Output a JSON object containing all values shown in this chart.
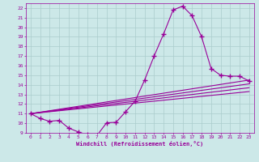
{
  "bg_color": "#cce8e8",
  "line_color": "#990099",
  "grid_color": "#aacccc",
  "xlabel": "Windchill (Refroidissement éolien,°C)",
  "xlabel_color": "#990099",
  "tick_color": "#990099",
  "ylim": [
    9,
    22.5
  ],
  "xlim": [
    -0.5,
    23.5
  ],
  "yticks": [
    9,
    10,
    11,
    12,
    13,
    14,
    15,
    16,
    17,
    18,
    19,
    20,
    21,
    22
  ],
  "xticks": [
    0,
    1,
    2,
    3,
    4,
    5,
    6,
    7,
    8,
    9,
    10,
    11,
    12,
    13,
    14,
    15,
    16,
    17,
    18,
    19,
    20,
    21,
    22,
    23
  ],
  "line1_x": [
    0,
    1,
    2,
    3,
    4,
    5,
    6,
    7,
    8,
    9,
    10,
    11,
    12,
    13,
    14,
    15,
    16,
    17,
    18,
    19,
    20,
    21,
    22,
    23
  ],
  "line1_y": [
    11.0,
    10.5,
    10.2,
    10.3,
    9.5,
    9.1,
    8.8,
    8.75,
    10.05,
    10.1,
    11.2,
    12.3,
    14.5,
    17.0,
    19.3,
    21.8,
    22.2,
    21.2,
    19.0,
    15.7,
    15.0,
    14.9,
    14.9,
    14.4
  ],
  "line2_x": [
    0,
    23
  ],
  "line2_y": [
    11.0,
    14.5
  ],
  "line3_x": [
    0,
    23
  ],
  "line3_y": [
    11.0,
    14.1
  ],
  "line4_x": [
    0,
    23
  ],
  "line4_y": [
    11.0,
    13.7
  ],
  "line5_x": [
    0,
    23
  ],
  "line5_y": [
    11.0,
    13.3
  ],
  "figsize": [
    3.2,
    2.0
  ],
  "dpi": 100
}
